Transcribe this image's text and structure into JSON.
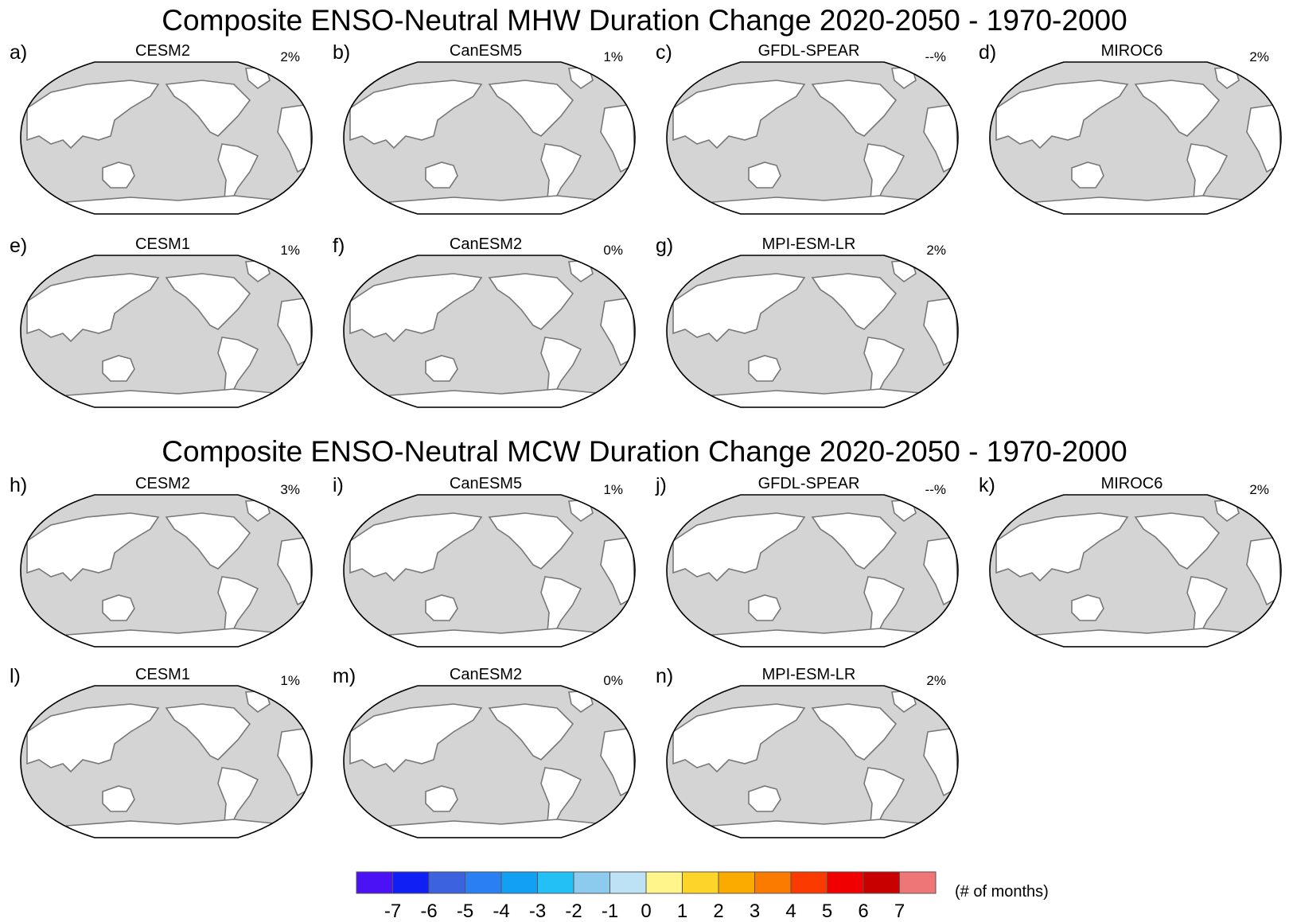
{
  "chart_data": [
    {
      "type": "heatmap",
      "title": "Composite ENSO-Neutral MHW Duration Change 2020-2050 - 1970-2000",
      "projection": "Robinson global map, Pacific-centered",
      "panels": [
        {
          "letter": "a)",
          "model": "CESM2",
          "percent": "2%"
        },
        {
          "letter": "b)",
          "model": "CanESM5",
          "percent": "1%"
        },
        {
          "letter": "c)",
          "model": "GFDL-SPEAR",
          "percent": "--%"
        },
        {
          "letter": "d)",
          "model": "MIROC6",
          "percent": "2%"
        },
        {
          "letter": "e)",
          "model": "CESM1",
          "percent": "1%"
        },
        {
          "letter": "f)",
          "model": "CanESM2",
          "percent": "0%"
        },
        {
          "letter": "g)",
          "model": "MPI-ESM-LR",
          "percent": "2%"
        }
      ]
    },
    {
      "type": "heatmap",
      "title": "Composite ENSO-Neutral MCW Duration Change 2020-2050 - 1970-2000",
      "projection": "Robinson global map, Pacific-centered",
      "panels": [
        {
          "letter": "h)",
          "model": "CESM2",
          "percent": "3%"
        },
        {
          "letter": "i)",
          "model": "CanESM5",
          "percent": "1%"
        },
        {
          "letter": "j)",
          "model": "GFDL-SPEAR",
          "percent": "--%"
        },
        {
          "letter": "k)",
          "model": "MIROC6",
          "percent": "2%"
        },
        {
          "letter": "l)",
          "model": "CESM1",
          "percent": "1%"
        },
        {
          "letter": "m)",
          "model": "CanESM2",
          "percent": "0%"
        },
        {
          "letter": "n)",
          "model": "MPI-ESM-LR",
          "percent": "2%"
        }
      ]
    }
  ],
  "colorbar": {
    "unit_label": "(# of months)",
    "ticks": [
      "-7",
      "-6",
      "-5",
      "-4",
      "-3",
      "-2",
      "-1",
      "0",
      "1",
      "2",
      "3",
      "4",
      "5",
      "6",
      "7"
    ],
    "colors": [
      "#4a12f5",
      "#1020f5",
      "#3c62e0",
      "#2a80f2",
      "#12a0f5",
      "#22c0f5",
      "#8ccbee",
      "#bde2f5",
      "#fff58a",
      "#fdd52a",
      "#fbab00",
      "#fb7a00",
      "#fb3a00",
      "#f00000",
      "#c80000",
      "#ef7676"
    ]
  },
  "map_colors": {
    "ocean": "#d4d4d4",
    "land": "#ffffff",
    "coast": "#777777",
    "border": "#000000"
  }
}
